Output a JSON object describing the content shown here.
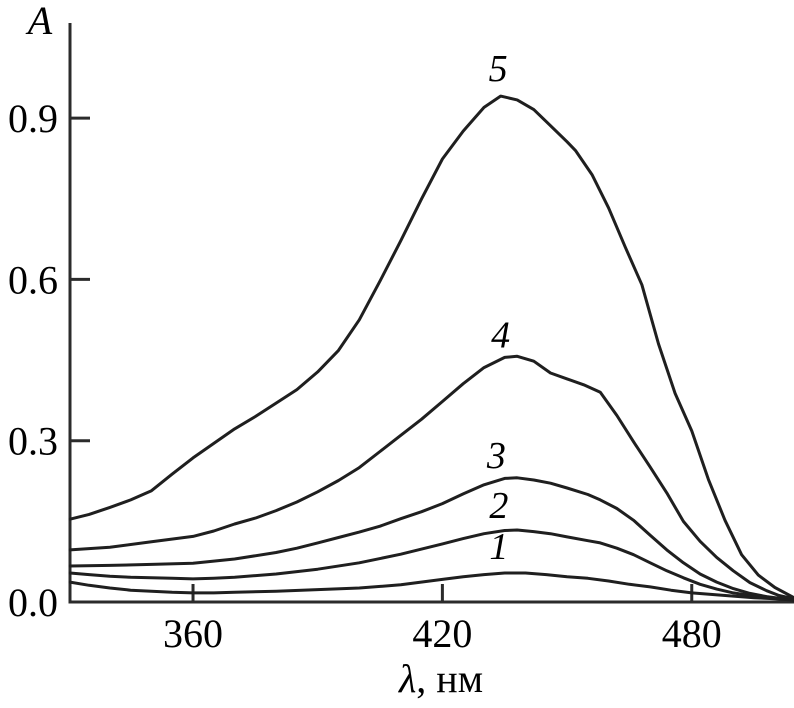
{
  "figure": {
    "background": "#ffffff",
    "curve_color": "#1f1f1f",
    "axis_color": "#2b2b2b",
    "text_color": "#000000"
  },
  "chart_data": {
    "type": "line",
    "title": "",
    "ylabel": "A",
    "xlabel_symbol": "λ",
    "xlabel_rest": ", нм",
    "xlim": [
      330.4,
      504.6
    ],
    "ylim": [
      0,
      1.077
    ],
    "x_ticks": [
      360,
      420,
      480
    ],
    "y_ticks": [
      0,
      0.3,
      0.6,
      0.9
    ],
    "y_tick_labels": [
      "0.0",
      "0.3",
      "0.6",
      "0.9"
    ],
    "grid": false,
    "series": [
      {
        "name": "1",
        "label": "1",
        "label_at": [
          433.6,
          0.104
        ],
        "points": [
          [
            330.4,
            0.037
          ],
          [
            335,
            0.031
          ],
          [
            340,
            0.026
          ],
          [
            345,
            0.022
          ],
          [
            350,
            0.02
          ],
          [
            355,
            0.018
          ],
          [
            360,
            0.017
          ],
          [
            365,
            0.017
          ],
          [
            370,
            0.018
          ],
          [
            380,
            0.02
          ],
          [
            390,
            0.023
          ],
          [
            400,
            0.026
          ],
          [
            410,
            0.032
          ],
          [
            420,
            0.042
          ],
          [
            425,
            0.047
          ],
          [
            430,
            0.051
          ],
          [
            435,
            0.054
          ],
          [
            440,
            0.054
          ],
          [
            445,
            0.051
          ],
          [
            450,
            0.047
          ],
          [
            455,
            0.044
          ],
          [
            460,
            0.039
          ],
          [
            465,
            0.033
          ],
          [
            470,
            0.028
          ],
          [
            475,
            0.022
          ],
          [
            480,
            0.017
          ],
          [
            485,
            0.014
          ],
          [
            490,
            0.011
          ],
          [
            495,
            0.008
          ],
          [
            500,
            0.006
          ],
          [
            504.6,
            0.004
          ]
        ]
      },
      {
        "name": "2",
        "label": "2",
        "label_at": [
          433.6,
          0.18
        ],
        "points": [
          [
            330.4,
            0.054
          ],
          [
            335,
            0.051
          ],
          [
            340,
            0.048
          ],
          [
            345,
            0.046
          ],
          [
            350,
            0.045
          ],
          [
            355,
            0.044
          ],
          [
            360,
            0.043
          ],
          [
            365,
            0.044
          ],
          [
            370,
            0.046
          ],
          [
            380,
            0.052
          ],
          [
            390,
            0.061
          ],
          [
            400,
            0.073
          ],
          [
            410,
            0.089
          ],
          [
            420,
            0.108
          ],
          [
            425,
            0.118
          ],
          [
            430,
            0.127
          ],
          [
            435,
            0.133
          ],
          [
            438,
            0.134
          ],
          [
            442,
            0.131
          ],
          [
            446,
            0.127
          ],
          [
            450,
            0.121
          ],
          [
            455,
            0.114
          ],
          [
            458,
            0.11
          ],
          [
            462,
            0.1
          ],
          [
            466,
            0.088
          ],
          [
            470,
            0.073
          ],
          [
            474,
            0.058
          ],
          [
            478,
            0.045
          ],
          [
            482,
            0.033
          ],
          [
            486,
            0.024
          ],
          [
            490,
            0.017
          ],
          [
            494,
            0.012
          ],
          [
            498,
            0.008
          ],
          [
            501,
            0.006
          ],
          [
            504.6,
            0.003
          ]
        ]
      },
      {
        "name": "3",
        "label": "3",
        "label_at": [
          433.0,
          0.273
        ],
        "points": [
          [
            330.4,
            0.067
          ],
          [
            340,
            0.068
          ],
          [
            350,
            0.07
          ],
          [
            360,
            0.072
          ],
          [
            370,
            0.08
          ],
          [
            380,
            0.092
          ],
          [
            385,
            0.1
          ],
          [
            390,
            0.11
          ],
          [
            395,
            0.12
          ],
          [
            400,
            0.13
          ],
          [
            405,
            0.141
          ],
          [
            410,
            0.155
          ],
          [
            415,
            0.168
          ],
          [
            420,
            0.183
          ],
          [
            425,
            0.201
          ],
          [
            430,
            0.218
          ],
          [
            435,
            0.23
          ],
          [
            438,
            0.231
          ],
          [
            442,
            0.227
          ],
          [
            446,
            0.221
          ],
          [
            450,
            0.212
          ],
          [
            455,
            0.2
          ],
          [
            458,
            0.19
          ],
          [
            462,
            0.174
          ],
          [
            466,
            0.152
          ],
          [
            470,
            0.124
          ],
          [
            474,
            0.097
          ],
          [
            478,
            0.073
          ],
          [
            482,
            0.052
          ],
          [
            486,
            0.037
          ],
          [
            490,
            0.025
          ],
          [
            494,
            0.016
          ],
          [
            498,
            0.01
          ],
          [
            501,
            0.007
          ],
          [
            504.6,
            0.004
          ]
        ]
      },
      {
        "name": "4",
        "label": "4",
        "label_at": [
          434.0,
          0.498
        ],
        "points": [
          [
            330.4,
            0.097
          ],
          [
            340,
            0.102
          ],
          [
            350,
            0.112
          ],
          [
            360,
            0.122
          ],
          [
            365,
            0.132
          ],
          [
            370,
            0.145
          ],
          [
            375,
            0.156
          ],
          [
            380,
            0.17
          ],
          [
            385,
            0.186
          ],
          [
            390,
            0.205
          ],
          [
            395,
            0.226
          ],
          [
            400,
            0.25
          ],
          [
            405,
            0.28
          ],
          [
            410,
            0.31
          ],
          [
            415,
            0.34
          ],
          [
            420,
            0.373
          ],
          [
            425,
            0.406
          ],
          [
            430,
            0.436
          ],
          [
            435,
            0.455
          ],
          [
            438,
            0.457
          ],
          [
            442,
            0.448
          ],
          [
            446,
            0.426
          ],
          [
            450,
            0.415
          ],
          [
            454,
            0.404
          ],
          [
            458,
            0.39
          ],
          [
            462,
            0.347
          ],
          [
            466,
            0.298
          ],
          [
            470,
            0.251
          ],
          [
            474,
            0.203
          ],
          [
            478,
            0.15
          ],
          [
            482,
            0.113
          ],
          [
            486,
            0.083
          ],
          [
            490,
            0.058
          ],
          [
            494,
            0.036
          ],
          [
            498,
            0.021
          ],
          [
            501,
            0.012
          ],
          [
            504.6,
            0.006
          ]
        ]
      },
      {
        "name": "5",
        "label": "5",
        "label_at": [
          433.4,
          0.993
        ],
        "points": [
          [
            330.4,
            0.154
          ],
          [
            335,
            0.163
          ],
          [
            340,
            0.176
          ],
          [
            345,
            0.19
          ],
          [
            350,
            0.207
          ],
          [
            355,
            0.238
          ],
          [
            360,
            0.268
          ],
          [
            365,
            0.295
          ],
          [
            370,
            0.322
          ],
          [
            375,
            0.345
          ],
          [
            380,
            0.37
          ],
          [
            385,
            0.395
          ],
          [
            390,
            0.428
          ],
          [
            395,
            0.468
          ],
          [
            400,
            0.525
          ],
          [
            405,
            0.597
          ],
          [
            410,
            0.672
          ],
          [
            415,
            0.75
          ],
          [
            420,
            0.824
          ],
          [
            425,
            0.876
          ],
          [
            430,
            0.92
          ],
          [
            434,
            0.941
          ],
          [
            438,
            0.934
          ],
          [
            442,
            0.916
          ],
          [
            446,
            0.886
          ],
          [
            450,
            0.856
          ],
          [
            452,
            0.84
          ],
          [
            456,
            0.795
          ],
          [
            460,
            0.733
          ],
          [
            464,
            0.66
          ],
          [
            468,
            0.59
          ],
          [
            472,
            0.48
          ],
          [
            476,
            0.388
          ],
          [
            480,
            0.318
          ],
          [
            484,
            0.228
          ],
          [
            488,
            0.152
          ],
          [
            492,
            0.088
          ],
          [
            496,
            0.05
          ],
          [
            500,
            0.027
          ],
          [
            504.6,
            0.008
          ]
        ]
      }
    ]
  }
}
